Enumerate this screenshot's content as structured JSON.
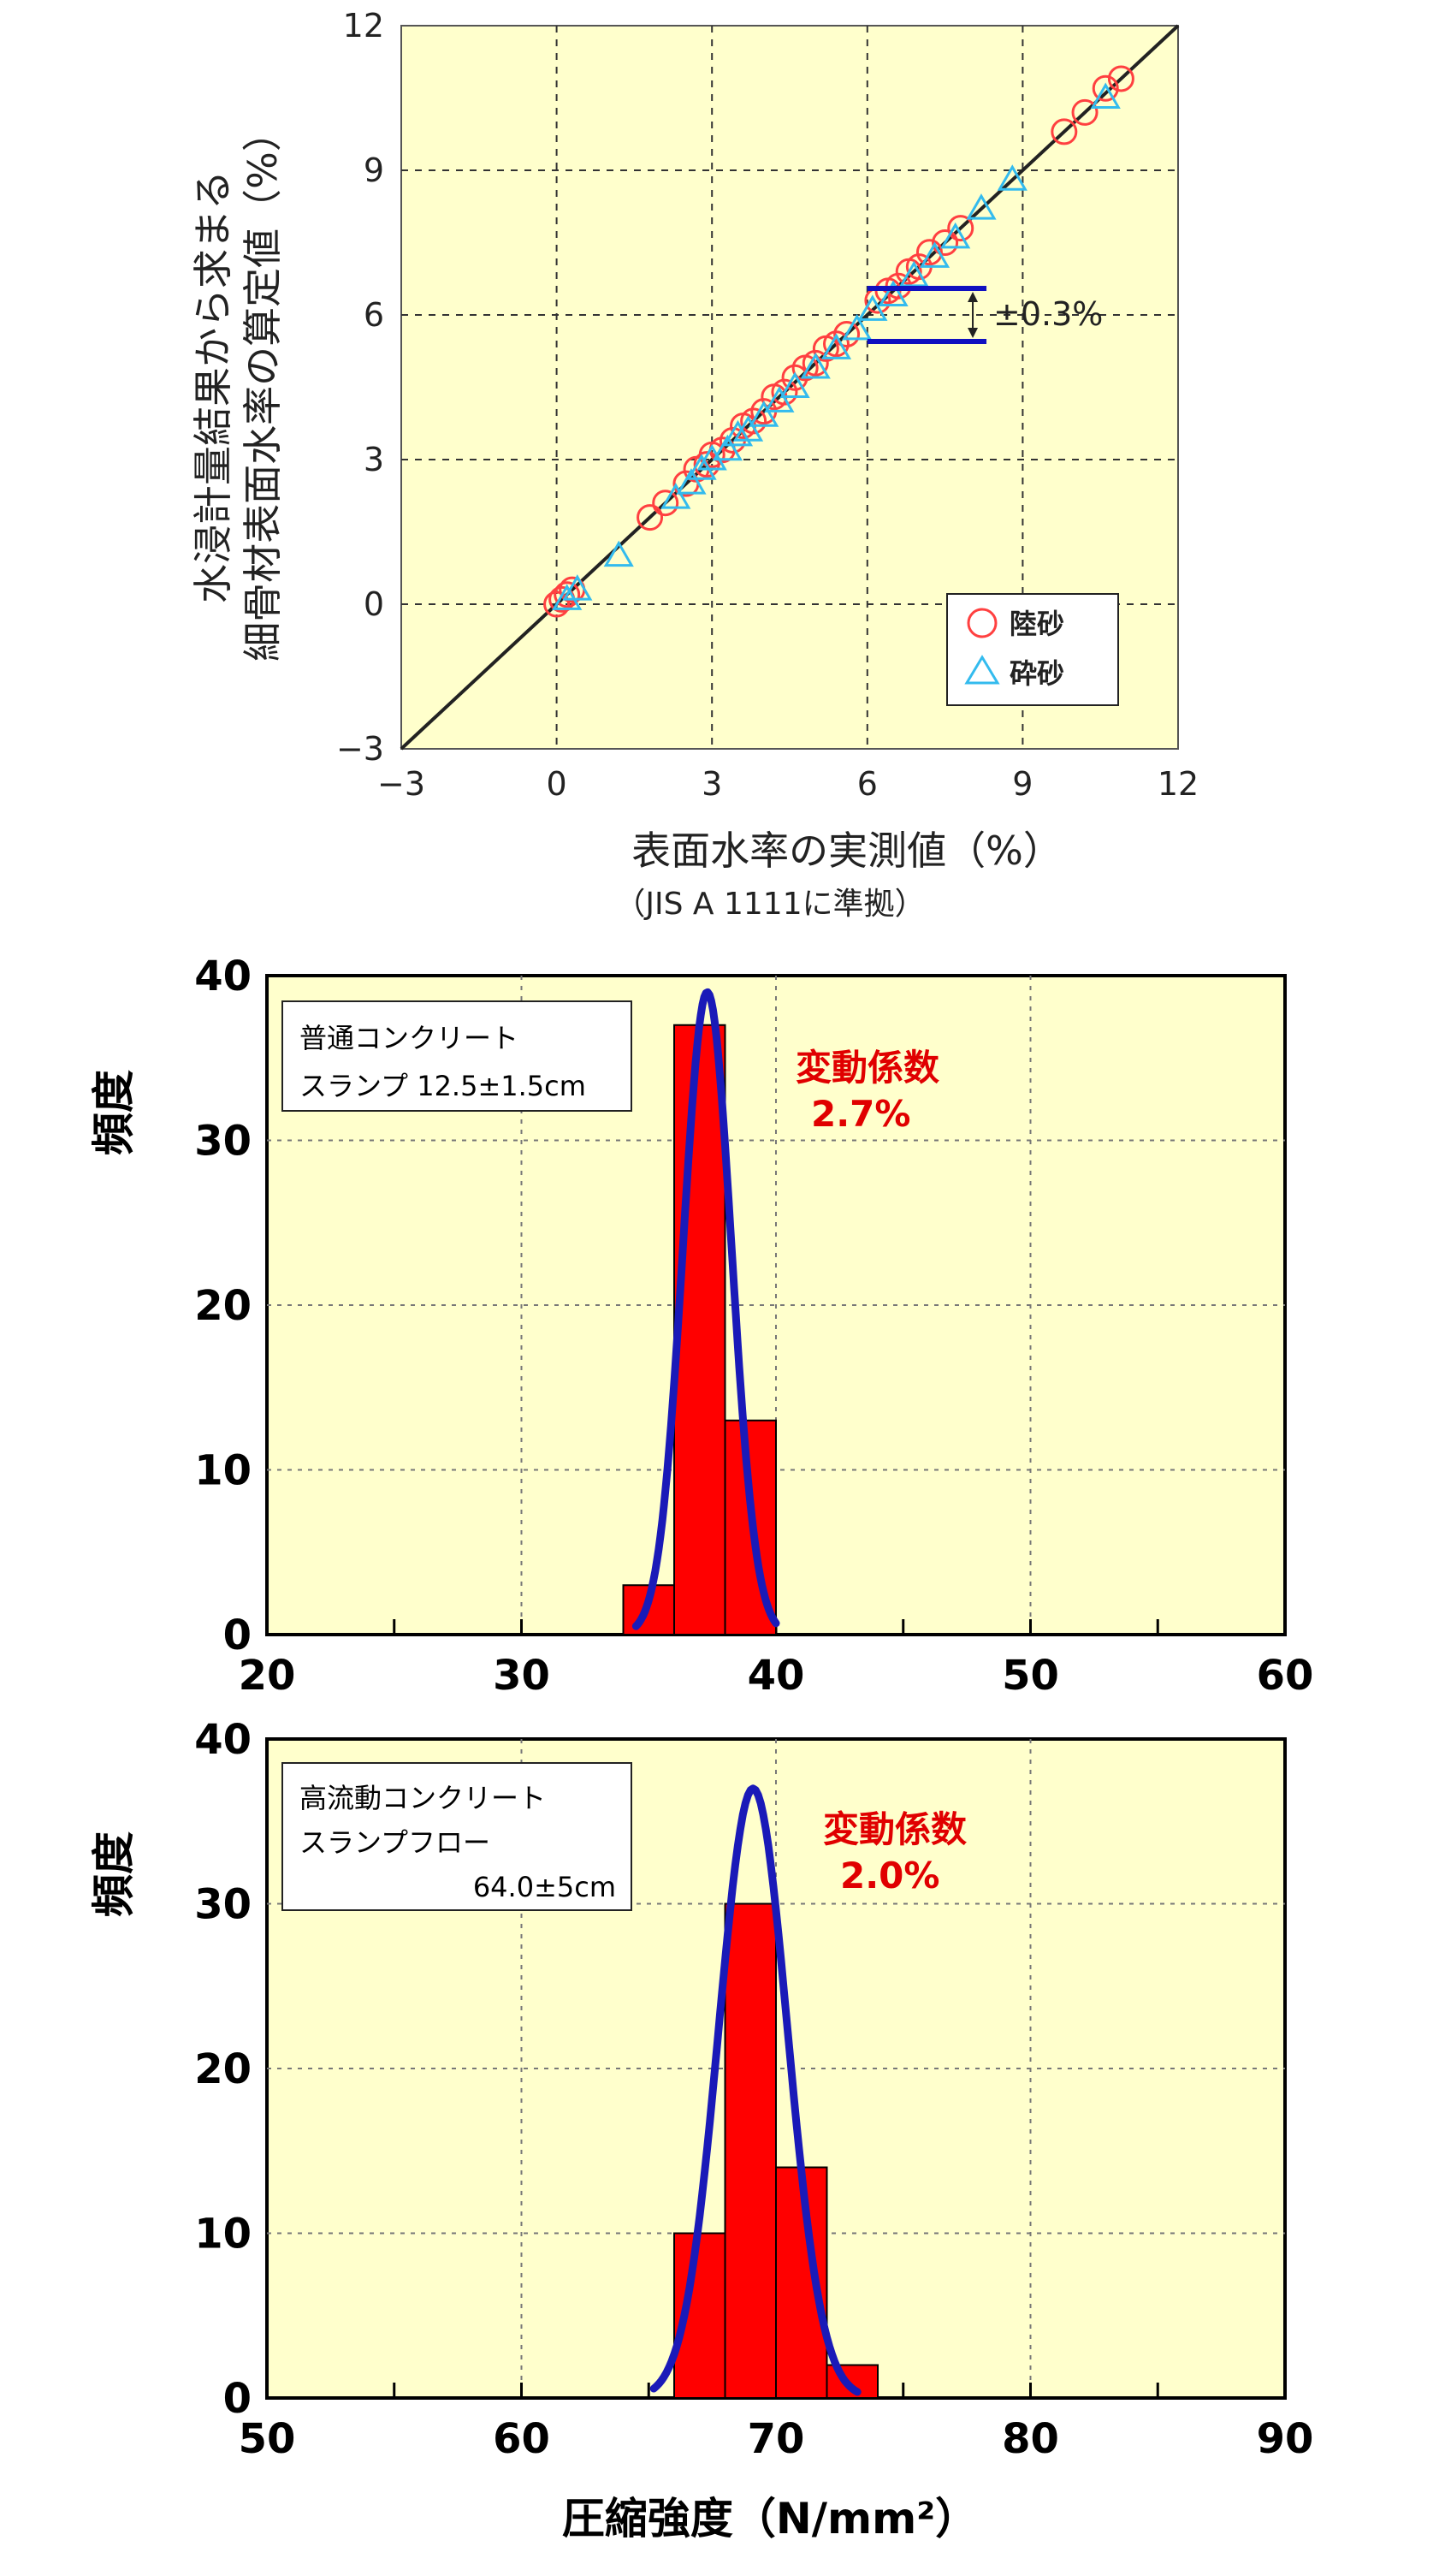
{
  "chart_data": [
    {
      "type": "scatter",
      "ylabel_lines": [
        "水浸計量結果から求まる",
        "細骨材表面水率の算定値（%）"
      ],
      "xlabel": "表面水率の実測値（%）",
      "xlabel_sub": "（JIS A 1111に準拠）",
      "xlim": [
        -3,
        12
      ],
      "ylim": [
        -3,
        12
      ],
      "xticks": [
        "−3",
        "0",
        "3",
        "6",
        "9",
        "12"
      ],
      "yticks": [
        "−3",
        "0",
        "3",
        "6",
        "9",
        "12"
      ],
      "grid": true,
      "background": "#ffffcc",
      "reference_line": {
        "x": [
          -3,
          12
        ],
        "y": [
          -3,
          12
        ]
      },
      "band_annotation": "±0.3%",
      "band": {
        "x": [
          6.0,
          8.3
        ],
        "y_center": 6.0,
        "half_width": 0.55
      },
      "legend_position": "bottom-right",
      "series": [
        {
          "name": "陸砂",
          "marker": "circle",
          "color": "#ff4040",
          "x": [
            0.0,
            0.1,
            0.2,
            0.3,
            1.8,
            2.1,
            2.5,
            2.7,
            2.9,
            3.0,
            3.2,
            3.4,
            3.6,
            3.8,
            4.0,
            4.2,
            4.4,
            4.6,
            4.8,
            5.0,
            5.2,
            5.4,
            5.6,
            6.2,
            6.4,
            6.6,
            6.8,
            7.0,
            7.2,
            7.5,
            7.8,
            9.8,
            10.2,
            10.6,
            10.9
          ],
          "y": [
            0.0,
            0.1,
            0.2,
            0.3,
            1.8,
            2.1,
            2.5,
            2.8,
            2.9,
            3.1,
            3.2,
            3.4,
            3.7,
            3.8,
            4.0,
            4.3,
            4.4,
            4.7,
            4.9,
            5.0,
            5.3,
            5.4,
            5.6,
            6.3,
            6.5,
            6.6,
            6.9,
            7.0,
            7.3,
            7.5,
            7.8,
            9.8,
            10.2,
            10.7,
            10.9
          ]
        },
        {
          "name": "砕砂",
          "marker": "triangle",
          "color": "#33bbee",
          "x": [
            0.2,
            0.4,
            1.2,
            2.3,
            2.6,
            2.8,
            3.0,
            3.3,
            3.5,
            3.7,
            4.0,
            4.3,
            4.6,
            5.0,
            5.4,
            5.8,
            6.1,
            6.5,
            6.9,
            7.3,
            7.7,
            8.2,
            8.8,
            10.6
          ],
          "y": [
            0.1,
            0.3,
            1.0,
            2.2,
            2.5,
            2.8,
            3.0,
            3.2,
            3.5,
            3.6,
            3.9,
            4.2,
            4.5,
            4.9,
            5.3,
            5.7,
            6.1,
            6.4,
            6.8,
            7.2,
            7.6,
            8.2,
            8.8,
            10.5
          ]
        }
      ]
    },
    {
      "type": "bar",
      "xlim": [
        20,
        60
      ],
      "ylim": [
        0,
        40
      ],
      "xticks": [
        "20",
        "30",
        "40",
        "50",
        "60"
      ],
      "yticks": [
        "0",
        "10",
        "20",
        "30",
        "40"
      ],
      "ylabel": "頻度",
      "grid": true,
      "background": "#ffffcc",
      "bar_color": "#ff0000",
      "curve_color": "#1a1ab8",
      "box_lines": [
        "普通コンクリート",
        "スランプ 12.5±1.5cm"
      ],
      "cv_label": "変動係数",
      "cv_value": "2.7%",
      "bins": [
        {
          "x0": 34,
          "x1": 36,
          "value": 3
        },
        {
          "x0": 36,
          "x1": 38,
          "value": 37
        },
        {
          "x0": 38,
          "x1": 40,
          "value": 13
        }
      ],
      "normal_curve": {
        "mean": 37.3,
        "peak": 39,
        "sd": 0.95,
        "range": [
          34.5,
          40.0
        ]
      }
    },
    {
      "type": "bar",
      "xlim": [
        50,
        90
      ],
      "ylim": [
        0,
        40
      ],
      "xticks": [
        "50",
        "60",
        "70",
        "80",
        "90"
      ],
      "yticks": [
        "0",
        "10",
        "20",
        "30",
        "40"
      ],
      "ylabel": "頻度",
      "xlabel": "圧縮強度（N/mm²）",
      "grid": true,
      "background": "#ffffcc",
      "bar_color": "#ff0000",
      "curve_color": "#1a1ab8",
      "box_lines": [
        "高流動コンクリート",
        "スランプフロー",
        "64.0±5cm"
      ],
      "cv_label": "変動係数",
      "cv_value": "2.0%",
      "bins": [
        {
          "x0": 66,
          "x1": 68,
          "value": 10
        },
        {
          "x0": 68,
          "x1": 70,
          "value": 30
        },
        {
          "x0": 70,
          "x1": 72,
          "value": 14
        },
        {
          "x0": 72,
          "x1": 74,
          "value": 2
        }
      ],
      "normal_curve": {
        "mean": 69.1,
        "peak": 37,
        "sd": 1.35,
        "range": [
          65.2,
          73.2
        ]
      }
    }
  ]
}
